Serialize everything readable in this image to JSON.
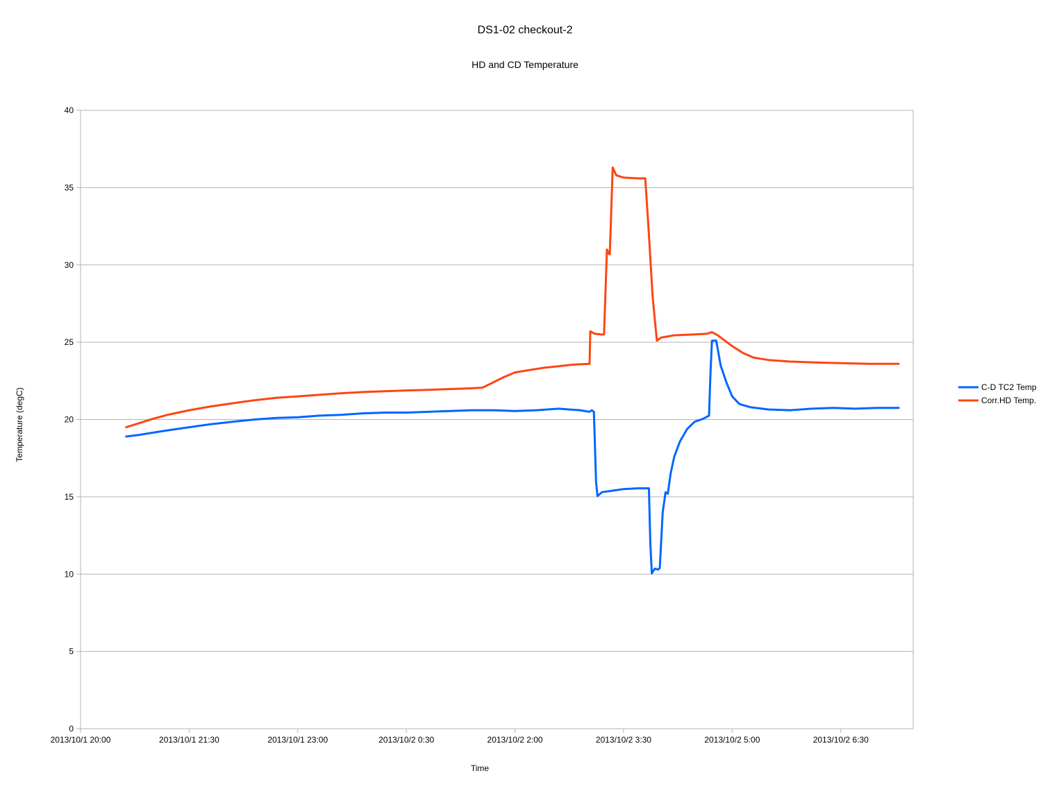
{
  "chart_data": {
    "type": "line",
    "title": "DS1-02 checkout-2",
    "subtitle": "HD and CD Temperature",
    "xlabel": "Time",
    "ylabel": "Temperature (degC)",
    "ylim": [
      0,
      40
    ],
    "yticks": [
      0,
      5,
      10,
      15,
      20,
      25,
      30,
      35,
      40
    ],
    "x_unit": "hours since 2013/10/1 20:00",
    "xlim": [
      0,
      11.5
    ],
    "xticks": [
      {
        "x": 0,
        "label": "2013/10/1 20:00"
      },
      {
        "x": 1.5,
        "label": "2013/10/1 21:30"
      },
      {
        "x": 3,
        "label": "2013/10/1 23:00"
      },
      {
        "x": 4.5,
        "label": "2013/10/2 0:30"
      },
      {
        "x": 6,
        "label": "2013/10/2 2:00"
      },
      {
        "x": 7.5,
        "label": "2013/10/2 3:30"
      },
      {
        "x": 9,
        "label": "2013/10/2 5:00"
      },
      {
        "x": 10.5,
        "label": "2013/10/2 6:30"
      }
    ],
    "grid": true,
    "legend_position": "right",
    "series": [
      {
        "name": "C-D TC2 Temp",
        "color": "#0066ff",
        "points": [
          [
            0.63,
            18.9
          ],
          [
            0.8,
            19.0
          ],
          [
            1.0,
            19.15
          ],
          [
            1.2,
            19.3
          ],
          [
            1.5,
            19.5
          ],
          [
            1.8,
            19.7
          ],
          [
            2.1,
            19.85
          ],
          [
            2.4,
            20.0
          ],
          [
            2.7,
            20.1
          ],
          [
            3.0,
            20.15
          ],
          [
            3.3,
            20.25
          ],
          [
            3.6,
            20.3
          ],
          [
            3.9,
            20.4
          ],
          [
            4.2,
            20.45
          ],
          [
            4.5,
            20.45
          ],
          [
            4.8,
            20.5
          ],
          [
            5.1,
            20.55
          ],
          [
            5.4,
            20.6
          ],
          [
            5.7,
            20.6
          ],
          [
            6.0,
            20.55
          ],
          [
            6.3,
            20.6
          ],
          [
            6.6,
            20.7
          ],
          [
            6.9,
            20.6
          ],
          [
            7.03,
            20.5
          ],
          [
            7.06,
            20.6
          ],
          [
            7.09,
            20.5
          ],
          [
            7.12,
            16.0
          ],
          [
            7.14,
            15.05
          ],
          [
            7.2,
            15.3
          ],
          [
            7.35,
            15.4
          ],
          [
            7.5,
            15.5
          ],
          [
            7.7,
            15.55
          ],
          [
            7.85,
            15.55
          ],
          [
            7.87,
            12.0
          ],
          [
            7.89,
            10.05
          ],
          [
            7.93,
            10.35
          ],
          [
            7.98,
            10.3
          ],
          [
            8.0,
            10.4
          ],
          [
            8.04,
            14.0
          ],
          [
            8.08,
            15.3
          ],
          [
            8.11,
            15.2
          ],
          [
            8.15,
            16.5
          ],
          [
            8.2,
            17.6
          ],
          [
            8.28,
            18.6
          ],
          [
            8.38,
            19.4
          ],
          [
            8.48,
            19.85
          ],
          [
            8.6,
            20.05
          ],
          [
            8.68,
            20.25
          ],
          [
            8.7,
            23.0
          ],
          [
            8.72,
            25.1
          ],
          [
            8.78,
            25.1
          ],
          [
            8.84,
            23.5
          ],
          [
            8.92,
            22.4
          ],
          [
            9.0,
            21.5
          ],
          [
            9.1,
            21.0
          ],
          [
            9.25,
            20.8
          ],
          [
            9.5,
            20.65
          ],
          [
            9.8,
            20.6
          ],
          [
            10.1,
            20.7
          ],
          [
            10.4,
            20.75
          ],
          [
            10.7,
            20.7
          ],
          [
            11.0,
            20.75
          ],
          [
            11.3,
            20.75
          ]
        ]
      },
      {
        "name": "Corr.HD Temp.",
        "color": "#ff4411",
        "points": [
          [
            0.63,
            19.5
          ],
          [
            0.8,
            19.75
          ],
          [
            1.0,
            20.05
          ],
          [
            1.2,
            20.3
          ],
          [
            1.5,
            20.6
          ],
          [
            1.8,
            20.85
          ],
          [
            2.1,
            21.05
          ],
          [
            2.4,
            21.25
          ],
          [
            2.7,
            21.4
          ],
          [
            3.0,
            21.5
          ],
          [
            3.3,
            21.6
          ],
          [
            3.6,
            21.7
          ],
          [
            3.9,
            21.78
          ],
          [
            4.2,
            21.83
          ],
          [
            4.5,
            21.88
          ],
          [
            4.8,
            21.92
          ],
          [
            5.1,
            21.97
          ],
          [
            5.4,
            22.02
          ],
          [
            5.55,
            22.06
          ],
          [
            5.7,
            22.4
          ],
          [
            5.85,
            22.75
          ],
          [
            6.0,
            23.05
          ],
          [
            6.2,
            23.2
          ],
          [
            6.4,
            23.35
          ],
          [
            6.6,
            23.45
          ],
          [
            6.8,
            23.55
          ],
          [
            7.03,
            23.6
          ],
          [
            7.04,
            25.7
          ],
          [
            7.1,
            25.55
          ],
          [
            7.2,
            25.5
          ],
          [
            7.23,
            25.5
          ],
          [
            7.27,
            31.0
          ],
          [
            7.3,
            30.7
          ],
          [
            7.31,
            30.7
          ],
          [
            7.35,
            36.3
          ],
          [
            7.4,
            35.8
          ],
          [
            7.5,
            35.65
          ],
          [
            7.7,
            35.6
          ],
          [
            7.8,
            35.6
          ],
          [
            7.85,
            32.0
          ],
          [
            7.9,
            28.0
          ],
          [
            7.96,
            25.1
          ],
          [
            8.02,
            25.3
          ],
          [
            8.2,
            25.45
          ],
          [
            8.45,
            25.5
          ],
          [
            8.65,
            25.55
          ],
          [
            8.72,
            25.65
          ],
          [
            8.8,
            25.45
          ],
          [
            8.9,
            25.1
          ],
          [
            9.0,
            24.75
          ],
          [
            9.15,
            24.3
          ],
          [
            9.3,
            24.0
          ],
          [
            9.5,
            23.85
          ],
          [
            9.8,
            23.75
          ],
          [
            10.1,
            23.7
          ],
          [
            10.5,
            23.65
          ],
          [
            10.9,
            23.6
          ],
          [
            11.3,
            23.6
          ]
        ]
      }
    ]
  }
}
